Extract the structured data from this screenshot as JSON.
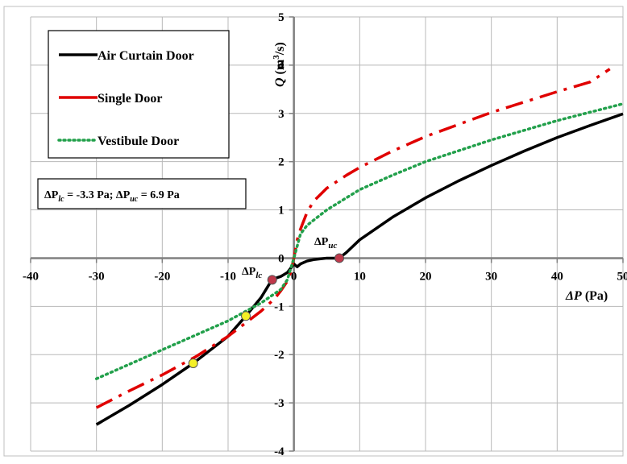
{
  "chart_data": {
    "type": "line",
    "xlabel": "ΔP (Pa)",
    "ylabel": "Q (m³/s)",
    "xlim": [
      -40,
      50
    ],
    "ylim": [
      -4,
      5
    ],
    "x_ticks": [
      -40,
      -30,
      -20,
      -10,
      0,
      10,
      20,
      30,
      40,
      50
    ],
    "y_ticks": [
      -4,
      -3,
      -2,
      -1,
      0,
      1,
      2,
      3,
      4,
      5
    ],
    "grid": true,
    "legend_position": "top-left",
    "series": [
      {
        "name": "Air Curtain Door",
        "color": "#000000",
        "style": "solid",
        "x": [
          -30,
          -25,
          -20,
          -15.3,
          -10,
          -7.3,
          -5,
          -3.3,
          -2,
          -1,
          0,
          0.5,
          1,
          2,
          3,
          5,
          6.9,
          8,
          10,
          15,
          20,
          25,
          30,
          35,
          40,
          45,
          50
        ],
        "y": [
          -3.45,
          -3.05,
          -2.62,
          -2.18,
          -1.62,
          -1.2,
          -0.82,
          -0.44,
          -0.38,
          -0.3,
          -0.12,
          -0.18,
          -0.12,
          -0.06,
          -0.03,
          0,
          0,
          0.12,
          0.38,
          0.85,
          1.25,
          1.6,
          1.92,
          2.22,
          2.5,
          2.75,
          2.99
        ]
      },
      {
        "name": "Single Door",
        "color": "#e00000",
        "style": "dashdot",
        "x": [
          -30,
          -25,
          -20,
          -15,
          -10,
          -5,
          -3,
          -2,
          -1,
          -0.5,
          0,
          0.5,
          1,
          2,
          3,
          5,
          8,
          10,
          15,
          20,
          30,
          40,
          45,
          48
        ],
        "y": [
          -3.1,
          -2.75,
          -2.42,
          -2.05,
          -1.62,
          -1.1,
          -0.85,
          -0.68,
          -0.48,
          -0.3,
          0,
          0.38,
          0.6,
          0.95,
          1.18,
          1.45,
          1.72,
          1.88,
          2.22,
          2.52,
          3.02,
          3.45,
          3.65,
          3.92
        ]
      },
      {
        "name": "Vestibule Door",
        "color": "#22a04b",
        "style": "dotted",
        "x": [
          -30,
          -25,
          -20,
          -15,
          -10,
          -5,
          -2,
          -1,
          0,
          1,
          2,
          5,
          10,
          15,
          20,
          30,
          40,
          50
        ],
        "y": [
          -2.5,
          -2.2,
          -1.9,
          -1.6,
          -1.3,
          -0.93,
          -0.65,
          -0.45,
          0,
          0.5,
          0.68,
          1.0,
          1.42,
          1.72,
          2.0,
          2.45,
          2.85,
          3.2
        ]
      }
    ],
    "markers": [
      {
        "x": -3.3,
        "y": -0.45,
        "color": "#c0394b",
        "label": "ΔPlc"
      },
      {
        "x": 6.9,
        "y": 0,
        "color": "#c0394b",
        "label": "ΔPuc"
      },
      {
        "x": -7.3,
        "y": -1.2,
        "color": "#f5f026",
        "label": ""
      },
      {
        "x": -15.3,
        "y": -2.18,
        "color": "#f5f026",
        "label": ""
      }
    ],
    "annotations": {
      "plc_label": {
        "base": "ΔP",
        "sub": "lc"
      },
      "puc_label": {
        "base": "ΔP",
        "sub": "uc"
      },
      "note": "ΔPlc = -3.3 Pa; ΔPuc = 6.9 Pa",
      "note_parts": {
        "p1": "ΔP",
        "s1": "lc",
        "m": " = -3.3 Pa; ΔP",
        "s2": "uc",
        "e": " = 6.9 Pa"
      }
    },
    "axis_title_parts": {
      "x": {
        "main": "ΔP",
        "unit": " (Pa)"
      },
      "y": {
        "main": "Q",
        "unit_pre": " (m",
        "sup": "3",
        "unit_post": "/s)"
      }
    }
  }
}
